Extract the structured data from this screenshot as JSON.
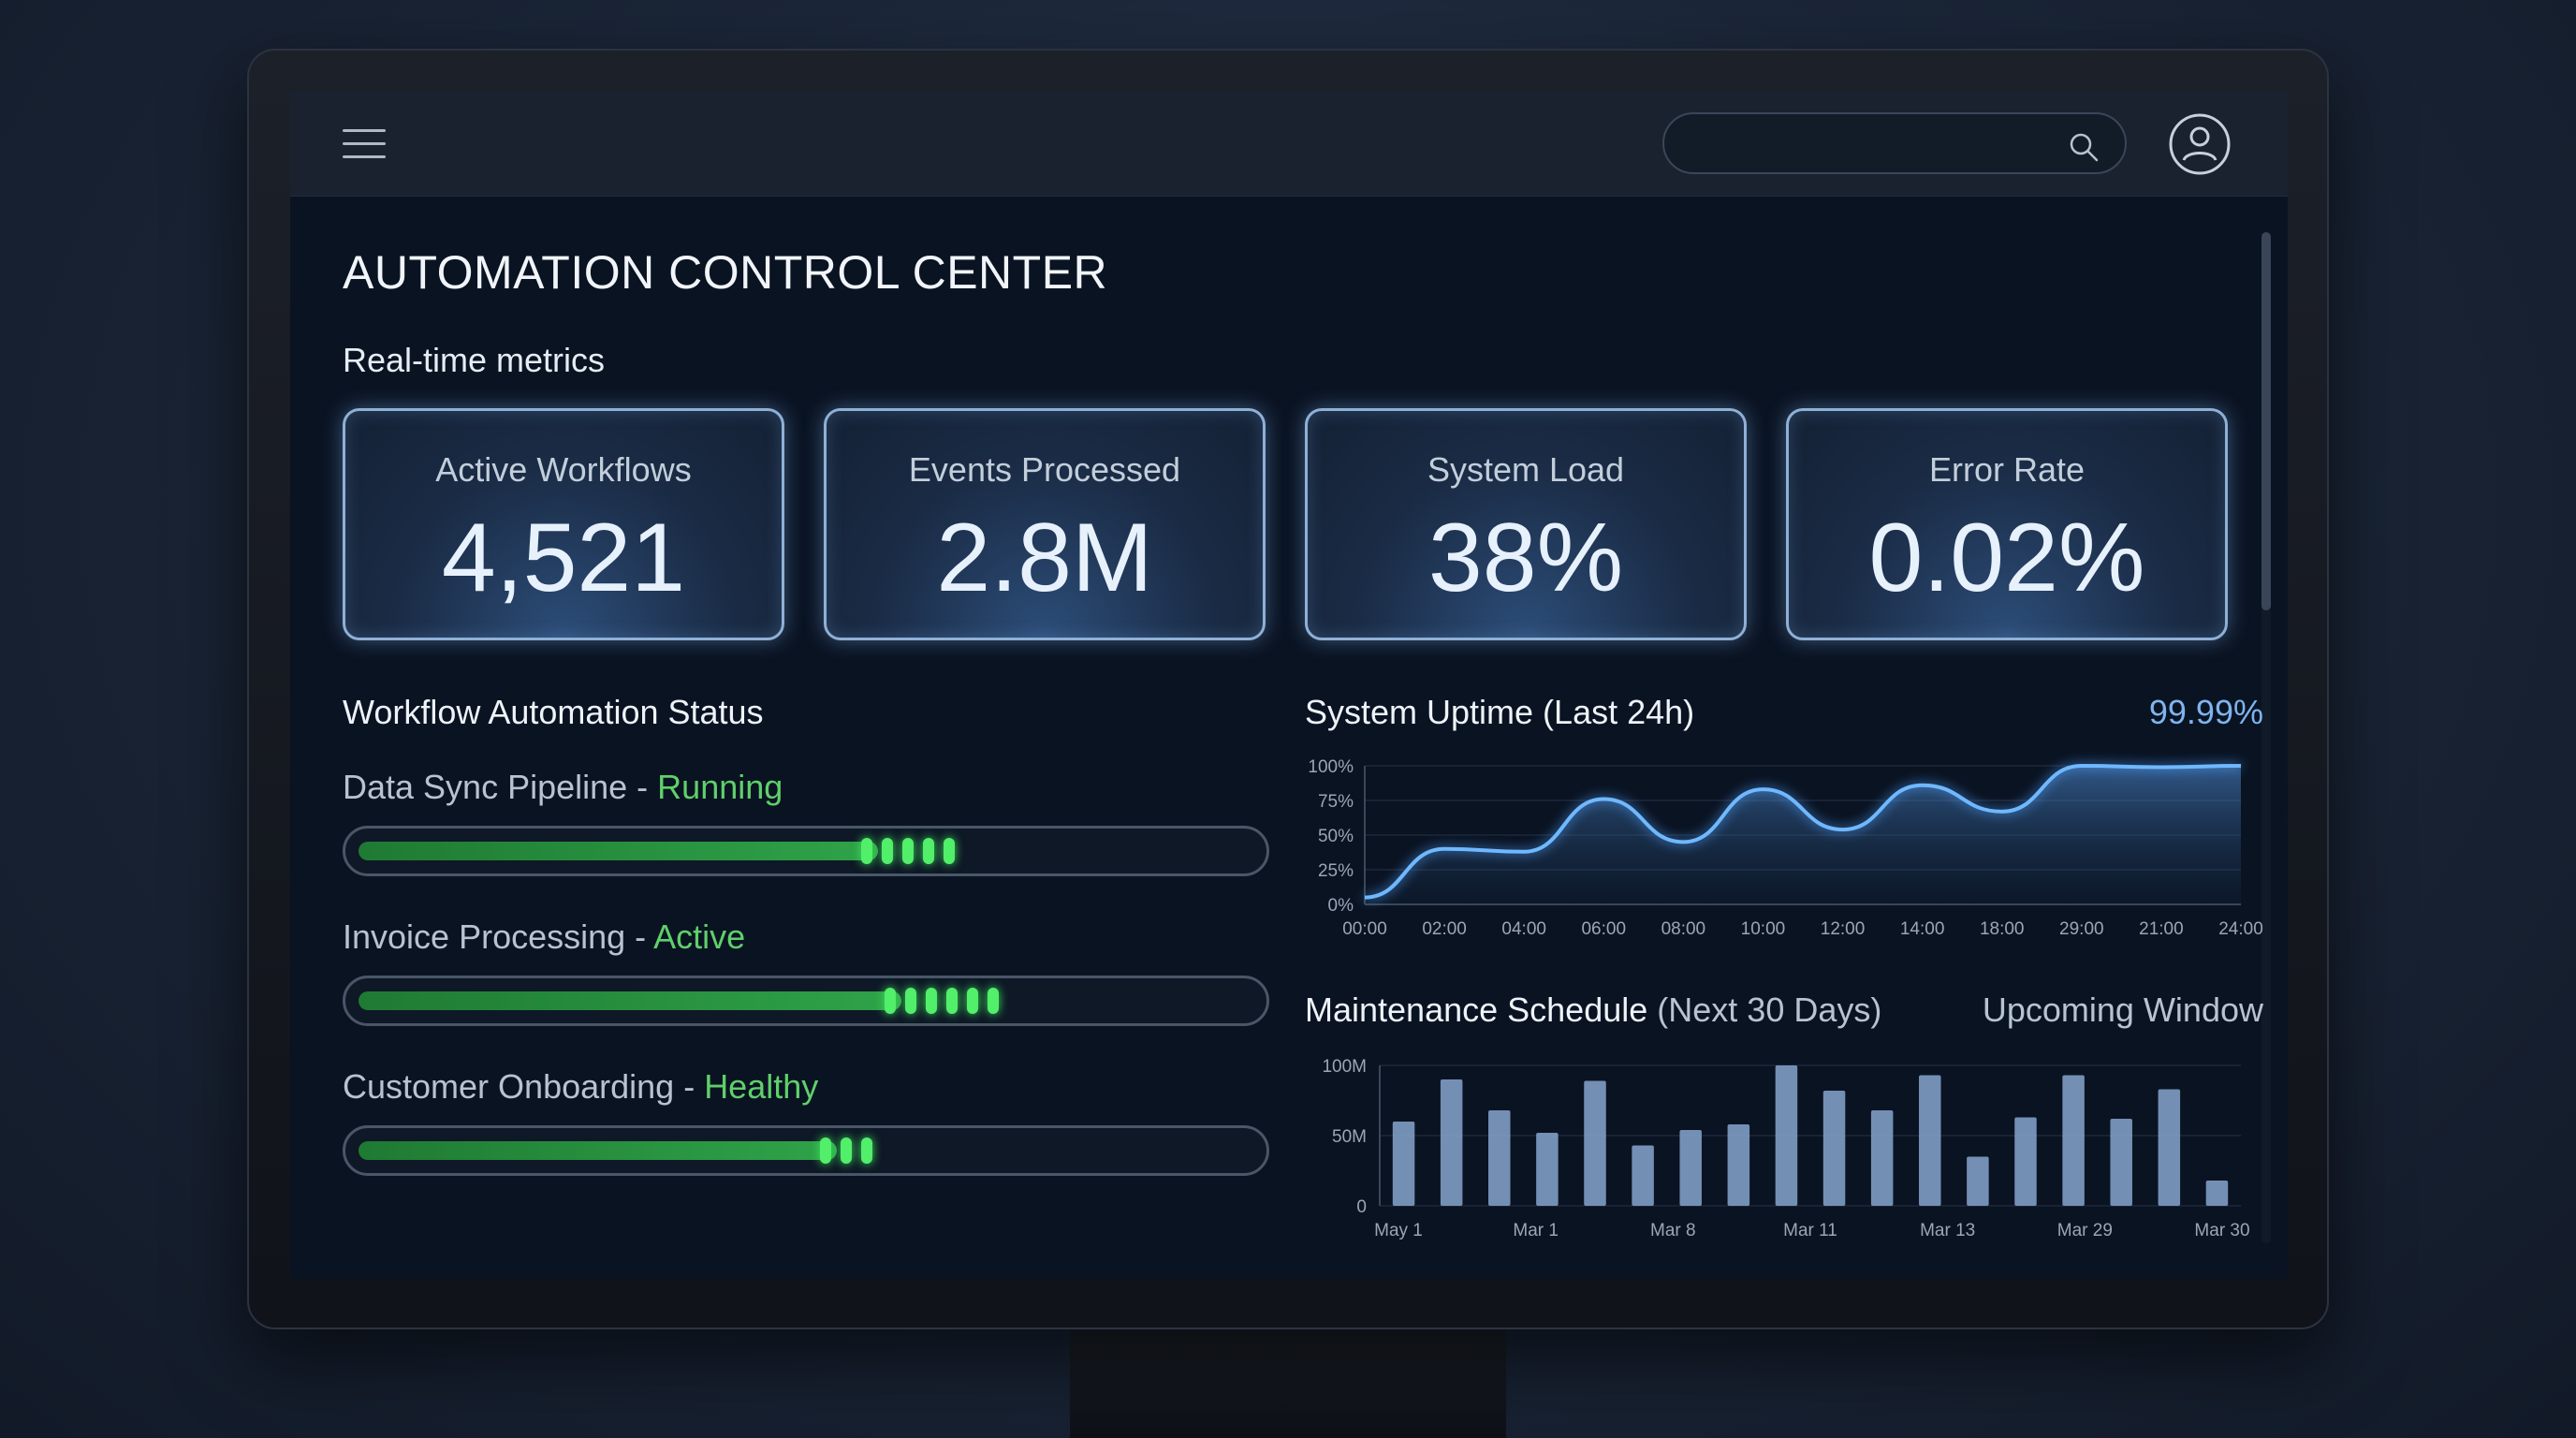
{
  "header": {
    "search_placeholder": "",
    "menu_icon": "hamburger-menu-icon",
    "search_icon": "search-icon",
    "avatar_icon": "user-avatar-icon"
  },
  "page": {
    "title": "AUTOMATION CONTROL CENTER",
    "subtitle": "Real-time metrics"
  },
  "metrics": [
    {
      "label": "Active Workflows",
      "value": "4,521"
    },
    {
      "label": "Events Processed",
      "value": "2.8M"
    },
    {
      "label": "System Load",
      "value": "38%"
    },
    {
      "label": "Error Rate",
      "value": "0.02%"
    }
  ],
  "workflow": {
    "heading": "Workflow Automation Status",
    "items": [
      {
        "name": "Data Sync Pipeline",
        "sep": " - ",
        "status": "Running",
        "progress": 0.575
      },
      {
        "name": "Invoice Processing",
        "sep": " - ",
        "status": "Active",
        "progress": 0.6
      },
      {
        "name": "Customer Onboarding",
        "sep": " - ",
        "status": "Healthy",
        "progress": 0.53
      }
    ]
  },
  "uptime": {
    "heading": "System Uptime (Last 24h)",
    "value": "99.99%"
  },
  "maintenance": {
    "heading": "Maintenance Schedule",
    "heading_suffix": "(Next 30 Days)",
    "upcoming": "Upcoming Window"
  },
  "colors": {
    "accent": "#7fb4ee",
    "status_green": "#5fd06a",
    "line": "#6fb8ff",
    "bar": "#7f9dc4"
  },
  "chart_data": [
    {
      "type": "area",
      "title": "System Uptime (Last 24h)",
      "x": [
        "00:00",
        "02:00",
        "04:00",
        "06:00",
        "08:00",
        "10:00",
        "12:00",
        "14:00",
        "18:00",
        "29:00",
        "21:00",
        "24:00"
      ],
      "values": [
        5,
        40,
        38,
        76,
        45,
        83,
        54,
        86,
        67,
        100,
        99,
        100
      ],
      "yticks": [
        "0%",
        "25%",
        "50%",
        "75%",
        "100%"
      ],
      "ylim": [
        0,
        100
      ]
    },
    {
      "type": "bar",
      "title": "Maintenance Schedule (Next 30 Days)",
      "x_labels": [
        "May 1",
        "Mar 1",
        "Mar 8",
        "Mar 11",
        "Mar 13",
        "Mar 29",
        "Mar 30"
      ],
      "values": [
        60,
        90,
        68,
        52,
        89,
        43,
        54,
        58,
        100,
        82,
        68,
        93,
        35,
        63,
        93,
        62,
        83,
        18
      ],
      "yticks": [
        "0",
        "50M",
        "100M"
      ],
      "ylim": [
        0,
        100
      ]
    }
  ]
}
